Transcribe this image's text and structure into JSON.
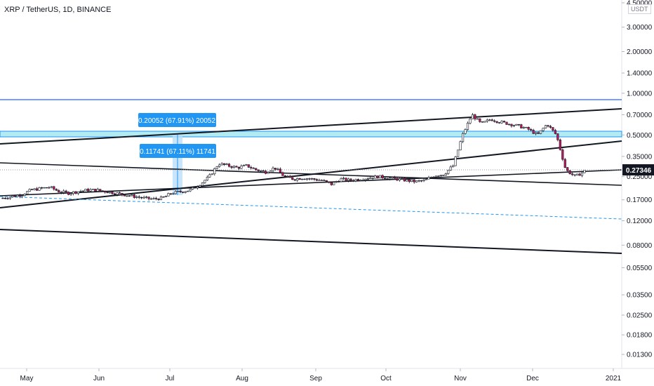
{
  "chart_data": {
    "type": "candlestick",
    "title": "XRP / TetherUS, 1D, BINANCE",
    "unit": "USDT",
    "y_scale": "log",
    "ylim": [
      0.0115,
      4.5
    ],
    "y_ticks": [
      "4.50000",
      "3.00000",
      "2.00000",
      "1.40000",
      "1.00000",
      "0.70000",
      "0.50000",
      "0.35000",
      "0.25000",
      "0.17000",
      "0.12000",
      "0.08000",
      "0.05500",
      "0.03500",
      "0.02500",
      "0.01800",
      "0.01300"
    ],
    "x_ticks": [
      "May",
      "Jun",
      "Jul",
      "Aug",
      "Sep",
      "Oct",
      "Nov",
      "Dec",
      "2021"
    ],
    "last_price": "0.27346",
    "colors": {
      "up": "#ffffff",
      "down": "#c2185b",
      "wick": "#131722",
      "blue_line": "#2962ff",
      "zone": "#b2ebf2",
      "label": "#2196f3"
    },
    "price_path": [
      [
        0.175,
        0.175
      ],
      [
        0.18,
        0.18
      ],
      [
        0.185,
        0.185
      ],
      [
        0.2,
        0.2
      ],
      [
        0.205,
        0.205
      ],
      [
        0.21,
        0.21
      ],
      [
        0.195,
        0.195
      ],
      [
        0.19,
        0.19
      ],
      [
        0.195,
        0.195
      ],
      [
        0.2,
        0.2
      ],
      [
        0.2,
        0.2
      ],
      [
        0.195,
        0.195
      ],
      [
        0.19,
        0.19
      ],
      [
        0.185,
        0.185
      ],
      [
        0.18,
        0.18
      ],
      [
        0.175,
        0.175
      ],
      [
        0.172,
        0.172
      ],
      [
        0.175,
        0.175
      ],
      [
        0.19,
        0.19
      ],
      [
        0.195,
        0.195
      ],
      [
        0.2,
        0.2
      ],
      [
        0.22,
        0.22
      ],
      [
        0.25,
        0.25
      ],
      [
        0.31,
        0.31
      ],
      [
        0.3,
        0.3
      ],
      [
        0.29,
        0.29
      ],
      [
        0.3,
        0.3
      ],
      [
        0.28,
        0.28
      ],
      [
        0.27,
        0.27
      ],
      [
        0.29,
        0.29
      ],
      [
        0.25,
        0.25
      ],
      [
        0.24,
        0.24
      ],
      [
        0.245,
        0.245
      ],
      [
        0.24,
        0.24
      ],
      [
        0.235,
        0.235
      ],
      [
        0.22,
        0.22
      ],
      [
        0.24,
        0.24
      ],
      [
        0.235,
        0.235
      ],
      [
        0.24,
        0.24
      ],
      [
        0.245,
        0.245
      ],
      [
        0.25,
        0.25
      ],
      [
        0.245,
        0.245
      ],
      [
        0.24,
        0.24
      ],
      [
        0.235,
        0.235
      ],
      [
        0.23,
        0.23
      ],
      [
        0.235,
        0.235
      ],
      [
        0.255,
        0.255
      ],
      [
        0.26,
        0.26
      ],
      [
        0.3,
        0.3
      ],
      [
        0.5,
        0.5
      ],
      [
        0.7,
        0.7
      ],
      [
        0.6,
        0.6
      ],
      [
        0.65,
        0.65
      ],
      [
        0.62,
        0.62
      ],
      [
        0.6,
        0.6
      ],
      [
        0.58,
        0.58
      ],
      [
        0.55,
        0.55
      ],
      [
        0.5,
        0.5
      ],
      [
        0.6,
        0.6
      ],
      [
        0.5,
        0.5
      ],
      [
        0.28,
        0.28
      ],
      [
        0.25,
        0.25
      ],
      [
        0.27346,
        0.27346
      ]
    ],
    "annotations": [
      {
        "text": "0.20052 (67.91%) 20052"
      },
      {
        "text": "0.11741 (67.11%) 11741"
      }
    ],
    "grid": false,
    "legend": "none"
  }
}
